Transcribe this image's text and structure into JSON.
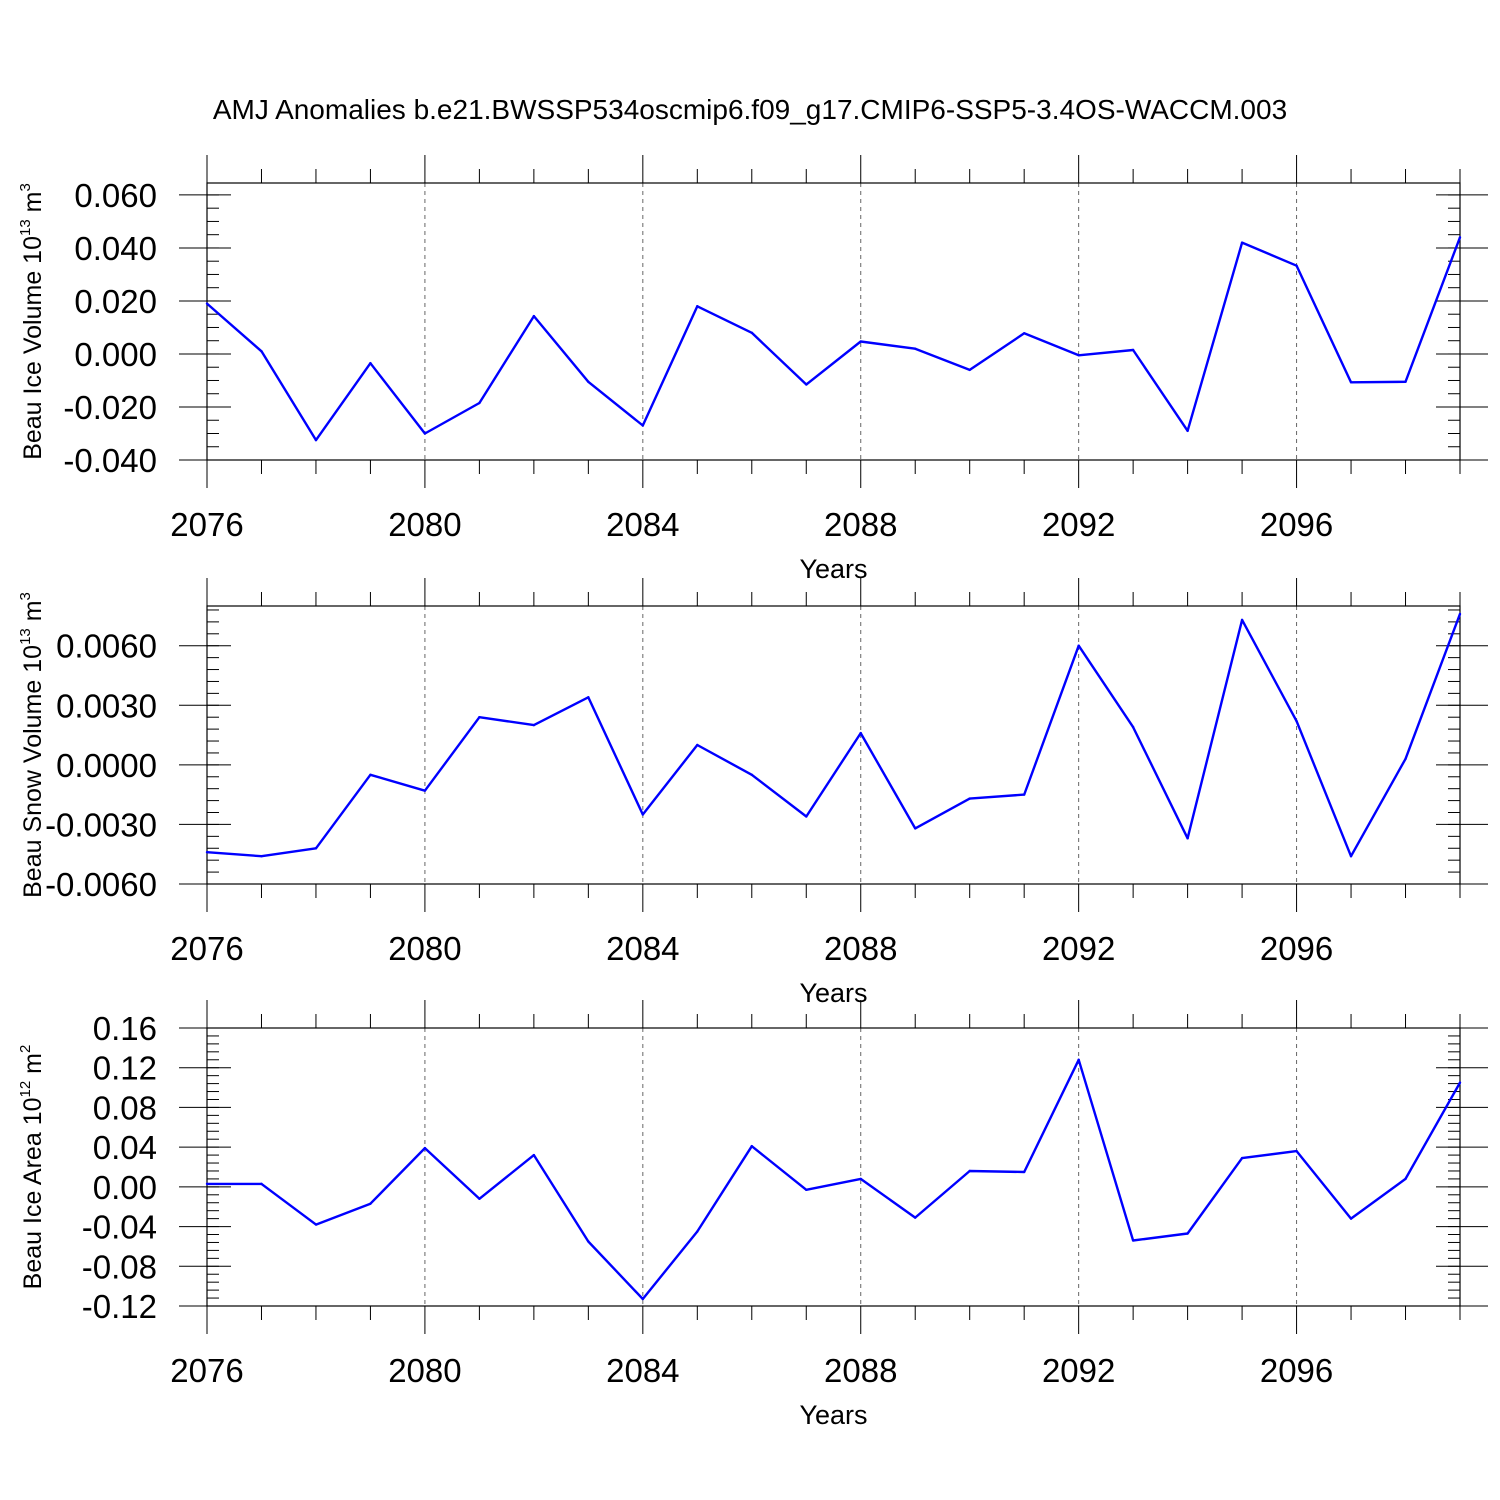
{
  "title": "AMJ Anomalies b.e21.BWSSP534oscmip6.f09_g17.CMIP6-SSP5-3.4OS-WACCM.003",
  "colors": {
    "line": "#0000ff",
    "axis": "#000000",
    "grid": "#000000"
  },
  "chart_data": [
    {
      "type": "line",
      "ylabel": "Beau Ice Volume 10",
      "ylabel_exp": "13",
      "ylabel_unit": "m",
      "ylabel_unit_exp": "3",
      "xlabel": "Years",
      "xlim": [
        2076,
        2099
      ],
      "ylim": [
        -0.04,
        0.0645
      ],
      "x_ticks": [
        2076,
        2080,
        2084,
        2088,
        2092,
        2096
      ],
      "x_tick_labels": [
        "2076",
        "2080",
        "2084",
        "2088",
        "2092",
        "2096"
      ],
      "y_ticks": [
        -0.04,
        -0.02,
        0.0,
        0.02,
        0.04,
        0.06
      ],
      "y_tick_labels": [
        "-0.040",
        "-0.020",
        "0.000",
        "0.020",
        "0.040",
        "0.060"
      ],
      "y_minor_step": 0.005,
      "grid": "dashed vertical at major x ticks",
      "x": [
        2076,
        2077,
        2078,
        2079,
        2080,
        2081,
        2082,
        2083,
        2084,
        2085,
        2086,
        2087,
        2088,
        2089,
        2090,
        2091,
        2092,
        2093,
        2094,
        2095,
        2096,
        2097,
        2098,
        2099
      ],
      "y": [
        0.019,
        0.001,
        -0.0325,
        -0.0035,
        -0.03,
        -0.0185,
        0.0143,
        -0.0105,
        -0.027,
        0.018,
        0.008,
        -0.0115,
        0.0047,
        0.002,
        -0.006,
        0.0078,
        -0.0005,
        0.0015,
        -0.029,
        0.042,
        0.0333,
        -0.0107,
        -0.0105,
        0.044
      ]
    },
    {
      "type": "line",
      "ylabel": "Beau Snow Volume 10",
      "ylabel_exp": "13",
      "ylabel_unit": "m",
      "ylabel_unit_exp": "3",
      "xlabel": "Years",
      "xlim": [
        2076,
        2099
      ],
      "ylim": [
        -0.006,
        0.008
      ],
      "x_ticks": [
        2076,
        2080,
        2084,
        2088,
        2092,
        2096
      ],
      "x_tick_labels": [
        "2076",
        "2080",
        "2084",
        "2088",
        "2092",
        "2096"
      ],
      "y_ticks": [
        -0.006,
        -0.003,
        0.0,
        0.003,
        0.006
      ],
      "y_tick_labels": [
        "-0.0060",
        "-0.0030",
        "0.0000",
        "0.0030",
        "0.0060"
      ],
      "y_minor_step": 0.0006,
      "grid": "dashed vertical at major x ticks",
      "x": [
        2076,
        2077,
        2078,
        2079,
        2080,
        2081,
        2082,
        2083,
        2084,
        2085,
        2086,
        2087,
        2088,
        2089,
        2090,
        2091,
        2092,
        2093,
        2094,
        2095,
        2096,
        2097,
        2098,
        2099
      ],
      "y": [
        -0.0044,
        -0.0046,
        -0.0042,
        -0.0005,
        -0.0013,
        0.0024,
        0.002,
        0.0034,
        -0.0025,
        0.001,
        -0.0005,
        -0.0026,
        0.0016,
        -0.0032,
        -0.0017,
        -0.0015,
        0.006,
        0.0019,
        -0.0037,
        0.0073,
        0.0022,
        -0.0046,
        0.0003,
        0.0076
      ]
    },
    {
      "type": "line",
      "ylabel": "Beau Ice Area 10",
      "ylabel_exp": "12",
      "ylabel_unit": "m",
      "ylabel_unit_exp": "2",
      "xlabel": "Years",
      "xlim": [
        2076,
        2099
      ],
      "ylim": [
        -0.12,
        0.16
      ],
      "x_ticks": [
        2076,
        2080,
        2084,
        2088,
        2092,
        2096
      ],
      "x_tick_labels": [
        "2076",
        "2080",
        "2084",
        "2088",
        "2092",
        "2096"
      ],
      "y_ticks": [
        -0.12,
        -0.08,
        -0.04,
        0.0,
        0.04,
        0.08,
        0.12,
        0.16
      ],
      "y_tick_labels": [
        "-0.12",
        "-0.08",
        "-0.04",
        "0.00",
        "0.04",
        "0.08",
        "0.12",
        "0.16"
      ],
      "y_minor_step": 0.008,
      "grid": "dashed vertical at major x ticks",
      "x": [
        2076,
        2077,
        2078,
        2079,
        2080,
        2081,
        2082,
        2083,
        2084,
        2085,
        2086,
        2087,
        2088,
        2089,
        2090,
        2091,
        2092,
        2093,
        2094,
        2095,
        2096,
        2097,
        2098,
        2099
      ],
      "y": [
        0.003,
        0.003,
        -0.038,
        -0.017,
        0.039,
        -0.012,
        0.032,
        -0.055,
        -0.113,
        -0.045,
        0.041,
        -0.003,
        0.008,
        -0.031,
        0.016,
        0.015,
        0.128,
        -0.054,
        -0.047,
        0.029,
        0.036,
        -0.032,
        0.008,
        0.105
      ]
    }
  ]
}
